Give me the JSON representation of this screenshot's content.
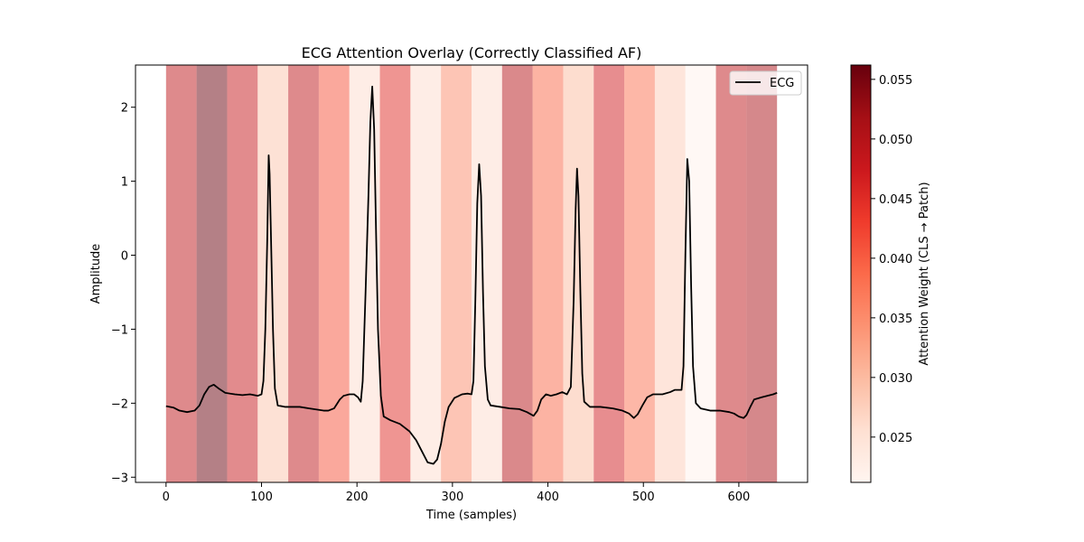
{
  "chart_data": {
    "type": "line",
    "title": "ECG Attention Overlay (Correctly Classified AF)",
    "xlabel": "Time (samples)",
    "ylabel": "Amplitude",
    "xlim": [
      -32,
      672
    ],
    "ylim": [
      -3.07,
      2.57
    ],
    "xticks": [
      0,
      100,
      200,
      300,
      400,
      500,
      600
    ],
    "yticks": [
      -3,
      -2,
      -1,
      0,
      1,
      2
    ],
    "legend": {
      "position": "top-right",
      "entries": [
        "ECG"
      ]
    },
    "grid": false,
    "series": [
      {
        "name": "ECG",
        "color": "#000000",
        "points": [
          [
            0,
            -2.04
          ],
          [
            8,
            -2.06
          ],
          [
            14,
            -2.1
          ],
          [
            22,
            -2.12
          ],
          [
            30,
            -2.1
          ],
          [
            35,
            -2.03
          ],
          [
            40,
            -1.88
          ],
          [
            45,
            -1.78
          ],
          [
            50,
            -1.75
          ],
          [
            55,
            -1.8
          ],
          [
            62,
            -1.86
          ],
          [
            72,
            -1.88
          ],
          [
            80,
            -1.89
          ],
          [
            88,
            -1.88
          ],
          [
            96,
            -1.9
          ],
          [
            100,
            -1.88
          ],
          [
            102,
            -1.7
          ],
          [
            104,
            -1.0
          ],
          [
            106,
            0.2
          ],
          [
            107.5,
            1.35
          ],
          [
            108.5,
            1.1
          ],
          [
            110,
            0.2
          ],
          [
            112,
            -1.0
          ],
          [
            114,
            -1.8
          ],
          [
            117,
            -2.03
          ],
          [
            125,
            -2.05
          ],
          [
            140,
            -2.05
          ],
          [
            150,
            -2.07
          ],
          [
            165,
            -2.1
          ],
          [
            170,
            -2.1
          ],
          [
            176,
            -2.07
          ],
          [
            182,
            -1.95
          ],
          [
            186,
            -1.9
          ],
          [
            192,
            -1.88
          ],
          [
            197,
            -1.88
          ],
          [
            201,
            -1.92
          ],
          [
            204,
            -1.98
          ],
          [
            206,
            -1.7
          ],
          [
            209,
            -0.5
          ],
          [
            212,
            0.8
          ],
          [
            214,
            1.8
          ],
          [
            216,
            2.28
          ],
          [
            218,
            1.7
          ],
          [
            220,
            0.3
          ],
          [
            222,
            -1.0
          ],
          [
            225,
            -1.9
          ],
          [
            228,
            -2.18
          ],
          [
            235,
            -2.23
          ],
          [
            245,
            -2.28
          ],
          [
            255,
            -2.38
          ],
          [
            262,
            -2.5
          ],
          [
            268,
            -2.65
          ],
          [
            274,
            -2.8
          ],
          [
            280,
            -2.82
          ],
          [
            284,
            -2.76
          ],
          [
            288,
            -2.55
          ],
          [
            292,
            -2.25
          ],
          [
            296,
            -2.05
          ],
          [
            302,
            -1.93
          ],
          [
            310,
            -1.88
          ],
          [
            316,
            -1.87
          ],
          [
            320,
            -1.88
          ],
          [
            322,
            -1.7
          ],
          [
            324,
            -0.6
          ],
          [
            326,
            0.7
          ],
          [
            328,
            1.23
          ],
          [
            330,
            0.8
          ],
          [
            332,
            -0.5
          ],
          [
            334,
            -1.5
          ],
          [
            337,
            -1.95
          ],
          [
            340,
            -2.03
          ],
          [
            350,
            -2.05
          ],
          [
            360,
            -2.07
          ],
          [
            370,
            -2.08
          ],
          [
            378,
            -2.12
          ],
          [
            385,
            -2.17
          ],
          [
            389,
            -2.1
          ],
          [
            393,
            -1.95
          ],
          [
            398,
            -1.88
          ],
          [
            403,
            -1.9
          ],
          [
            409,
            -1.88
          ],
          [
            415,
            -1.85
          ],
          [
            420,
            -1.88
          ],
          [
            424,
            -1.78
          ],
          [
            427,
            -0.6
          ],
          [
            429,
            0.6
          ],
          [
            430.5,
            1.17
          ],
          [
            432,
            0.8
          ],
          [
            434,
            -0.5
          ],
          [
            436,
            -1.6
          ],
          [
            438,
            -1.98
          ],
          [
            444,
            -2.05
          ],
          [
            455,
            -2.05
          ],
          [
            468,
            -2.07
          ],
          [
            478,
            -2.1
          ],
          [
            485,
            -2.14
          ],
          [
            490,
            -2.2
          ],
          [
            494,
            -2.15
          ],
          [
            499,
            -2.03
          ],
          [
            504,
            -1.92
          ],
          [
            510,
            -1.88
          ],
          [
            520,
            -1.88
          ],
          [
            528,
            -1.85
          ],
          [
            533,
            -1.82
          ],
          [
            540,
            -1.82
          ],
          [
            542,
            -1.5
          ],
          [
            544,
            0.0
          ],
          [
            546,
            1.3
          ],
          [
            548,
            1.0
          ],
          [
            550,
            -0.4
          ],
          [
            552,
            -1.5
          ],
          [
            555,
            -2.0
          ],
          [
            560,
            -2.07
          ],
          [
            570,
            -2.1
          ],
          [
            580,
            -2.1
          ],
          [
            590,
            -2.12
          ],
          [
            595,
            -2.14
          ],
          [
            600,
            -2.18
          ],
          [
            605,
            -2.2
          ],
          [
            608,
            -2.16
          ],
          [
            612,
            -2.05
          ],
          [
            616,
            -1.95
          ],
          [
            624,
            -1.92
          ],
          [
            630,
            -1.9
          ],
          [
            636,
            -1.88
          ],
          [
            640,
            -1.86
          ]
        ]
      }
    ],
    "attention_patches": {
      "patch_size": 32,
      "starts": [
        0,
        32,
        64,
        96,
        128,
        160,
        192,
        224,
        256,
        288,
        320,
        352,
        384,
        416,
        448,
        480,
        512,
        544,
        576,
        608
      ],
      "weights": [
        0.049,
        0.056,
        0.048,
        0.029,
        0.049,
        0.041,
        0.026,
        0.045,
        0.026,
        0.035,
        0.026,
        0.05,
        0.039,
        0.03,
        0.047,
        0.038,
        0.028,
        0.022,
        0.049,
        0.051
      ]
    },
    "colorbar": {
      "label": "Attention Weight (CLS → Patch)",
      "min": 0.0212,
      "max": 0.0562,
      "ticks": [
        "0.025",
        "0.030",
        "0.035",
        "0.040",
        "0.045",
        "0.050",
        "0.055"
      ],
      "colormap": "Reds"
    }
  }
}
